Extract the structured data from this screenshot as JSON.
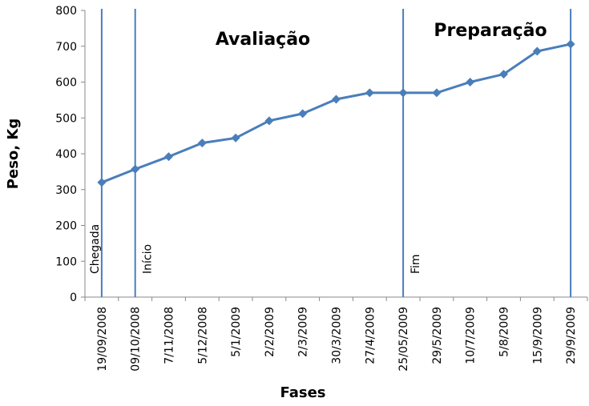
{
  "chart_data": {
    "type": "line",
    "y_label": "Peso, Kg",
    "x_label": "Fases",
    "categories": [
      "19/09/2008",
      "09/10/2008",
      "7/11/2008",
      "5/12/2008",
      "5/1/2009",
      "2/2/2009",
      "2/3/2009",
      "30/3/2009",
      "27/4/2009",
      "25/05/2009",
      "29/5/2009",
      "10/7/2009",
      "5/8/2009",
      "15/9/2009",
      "29/9/2009"
    ],
    "values": [
      320,
      357,
      392,
      430,
      444,
      492,
      512,
      552,
      570,
      570,
      570,
      600,
      622,
      686,
      706
    ],
    "color": "#4a7ebb",
    "ylim": [
      0,
      800
    ],
    "yticks": [
      0,
      100,
      200,
      300,
      400,
      500,
      600,
      700,
      800
    ],
    "markers": [
      {
        "x": "19/09/2008",
        "label": "Chegada"
      },
      {
        "x": "09/10/2008",
        "label": "Início"
      },
      {
        "x": "25/05/2009",
        "label": "Fim"
      },
      {
        "x": "29/9/2009"
      }
    ],
    "regions": [
      "Avaliação",
      "Preparação"
    ]
  }
}
